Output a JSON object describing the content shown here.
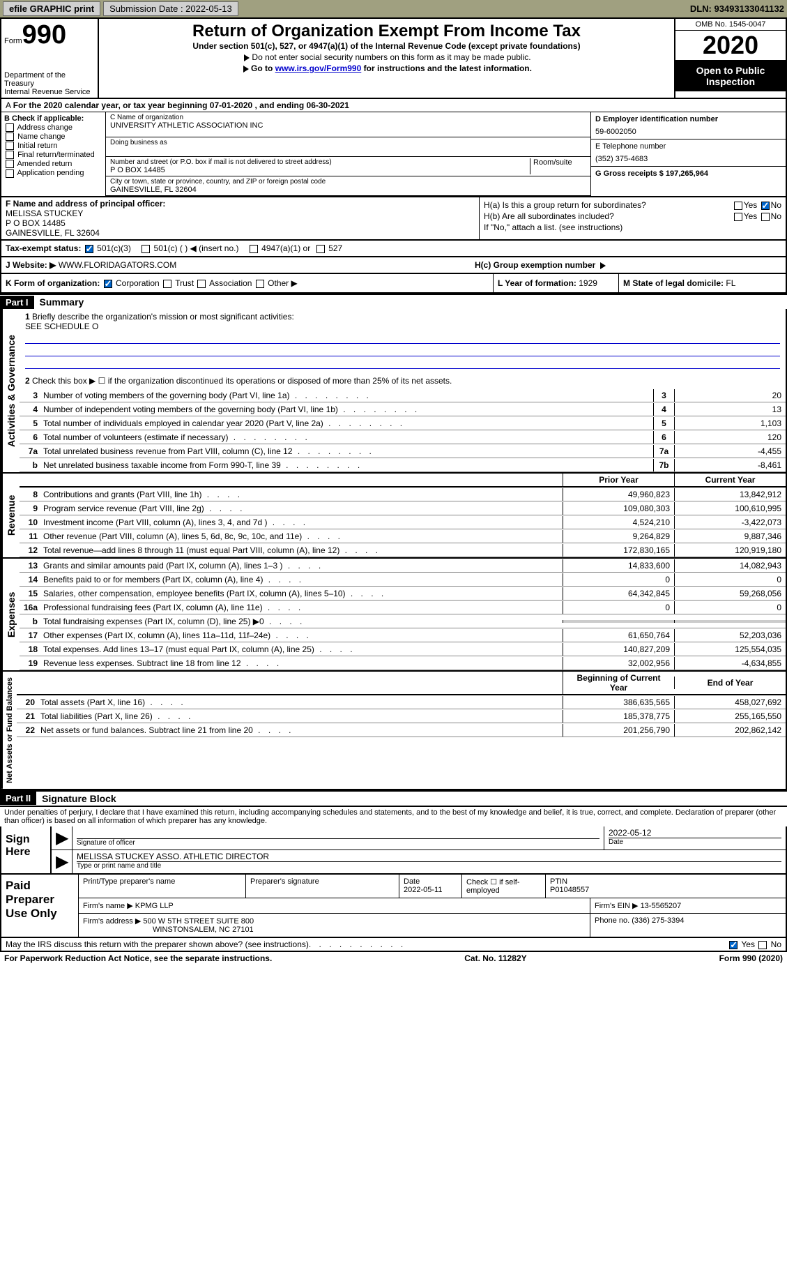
{
  "topbar": {
    "efile": "efile GRAPHIC print",
    "submission_label": "Submission Date : 2022-05-13",
    "dln": "DLN: 93493133041132"
  },
  "header": {
    "form_label": "Form",
    "form_number": "990",
    "dept": "Department of the Treasury\nInternal Revenue Service",
    "title": "Return of Organization Exempt From Income Tax",
    "subtitle": "Under section 501(c), 527, or 4947(a)(1) of the Internal Revenue Code (except private foundations)",
    "note1": "Do not enter social security numbers on this form as it may be made public.",
    "note2_prefix": "Go to ",
    "note2_link": "www.irs.gov/Form990",
    "note2_suffix": " for instructions and the latest information.",
    "omb": "OMB No. 1545-0047",
    "year": "2020",
    "inspect": "Open to Public Inspection"
  },
  "line_a": "For the 2020 calendar year, or tax year beginning 07-01-2020   , and ending 06-30-2021",
  "col_b": {
    "header": "B Check if applicable:",
    "items": [
      "Address change",
      "Name change",
      "Initial return",
      "Final return/terminated",
      "Amended return",
      "Application pending"
    ]
  },
  "col_c": {
    "name_label": "C Name of organization",
    "name": "UNIVERSITY ATHLETIC ASSOCIATION INC",
    "dba_label": "Doing business as",
    "street_label": "Number and street (or P.O. box if mail is not delivered to street address)",
    "street": "P O BOX 14485",
    "room_label": "Room/suite",
    "city_label": "City or town, state or province, country, and ZIP or foreign postal code",
    "city": "GAINESVILLE, FL  32604"
  },
  "col_d": {
    "ein_label": "D Employer identification number",
    "ein": "59-6002050",
    "phone_label": "E Telephone number",
    "phone": "(352) 375-4683",
    "gross_label": "G Gross receipts $ 197,265,964"
  },
  "section_f": {
    "label": "F  Name and address of principal officer:",
    "name": "MELISSA STUCKEY",
    "addr1": "P O BOX 14485",
    "addr2": "GAINESVILLE, FL  32604"
  },
  "section_h": {
    "ha_label": "H(a)  Is this a group return for subordinates?",
    "ha_yes": "Yes",
    "ha_no": "No",
    "hb_label": "H(b)  Are all subordinates included?",
    "hb_yes": "Yes",
    "hb_no": "No",
    "hb_note": "If \"No,\" attach a list. (see instructions)",
    "hc_label": "H(c)  Group exemption number"
  },
  "tax_status": {
    "label": "Tax-exempt status:",
    "opt1": "501(c)(3)",
    "opt2": "501(c) (   ) ◀ (insert no.)",
    "opt3": "4947(a)(1) or",
    "opt4": "527"
  },
  "website": {
    "label": "J   Website: ▶",
    "value": "WWW.FLORIDAGATORS.COM"
  },
  "k_row": {
    "k_label": "K Form of organization:",
    "k_corp": "Corporation",
    "k_trust": "Trust",
    "k_assoc": "Association",
    "k_other": "Other ▶",
    "l_label": "L Year of formation: ",
    "l_val": "1929",
    "m_label": "M State of legal domicile: ",
    "m_val": "FL"
  },
  "part1": {
    "label": "Part I",
    "title": "Summary"
  },
  "mission": {
    "q1": "Briefly describe the organization's mission or most significant activities:",
    "answer": "SEE SCHEDULE O",
    "q2": "Check this box ▶ ☐  if the organization discontinued its operations or disposed of more than 25% of its net assets."
  },
  "gov_rows": [
    {
      "n": "3",
      "d": "Number of voting members of the governing body (Part VI, line 1a)",
      "box": "3",
      "v": "20"
    },
    {
      "n": "4",
      "d": "Number of independent voting members of the governing body (Part VI, line 1b)",
      "box": "4",
      "v": "13"
    },
    {
      "n": "5",
      "d": "Total number of individuals employed in calendar year 2020 (Part V, line 2a)",
      "box": "5",
      "v": "1,103"
    },
    {
      "n": "6",
      "d": "Total number of volunteers (estimate if necessary)",
      "box": "6",
      "v": "120"
    },
    {
      "n": "7a",
      "d": "Total unrelated business revenue from Part VIII, column (C), line 12",
      "box": "7a",
      "v": "-4,455"
    },
    {
      "n": "b",
      "d": "Net unrelated business taxable income from Form 990-T, line 39",
      "box": "7b",
      "v": "-8,461"
    }
  ],
  "py_cy_header": {
    "py": "Prior Year",
    "cy": "Current Year"
  },
  "revenue_rows": [
    {
      "n": "8",
      "d": "Contributions and grants (Part VIII, line 1h)",
      "py": "49,960,823",
      "cy": "13,842,912"
    },
    {
      "n": "9",
      "d": "Program service revenue (Part VIII, line 2g)",
      "py": "109,080,303",
      "cy": "100,610,995"
    },
    {
      "n": "10",
      "d": "Investment income (Part VIII, column (A), lines 3, 4, and 7d )",
      "py": "4,524,210",
      "cy": "-3,422,073"
    },
    {
      "n": "11",
      "d": "Other revenue (Part VIII, column (A), lines 5, 6d, 8c, 9c, 10c, and 11e)",
      "py": "9,264,829",
      "cy": "9,887,346"
    },
    {
      "n": "12",
      "d": "Total revenue—add lines 8 through 11 (must equal Part VIII, column (A), line 12)",
      "py": "172,830,165",
      "cy": "120,919,180"
    }
  ],
  "expense_rows": [
    {
      "n": "13",
      "d": "Grants and similar amounts paid (Part IX, column (A), lines 1–3 )",
      "py": "14,833,600",
      "cy": "14,082,943"
    },
    {
      "n": "14",
      "d": "Benefits paid to or for members (Part IX, column (A), line 4)",
      "py": "0",
      "cy": "0"
    },
    {
      "n": "15",
      "d": "Salaries, other compensation, employee benefits (Part IX, column (A), lines 5–10)",
      "py": "64,342,845",
      "cy": "59,268,056"
    },
    {
      "n": "16a",
      "d": "Professional fundraising fees (Part IX, column (A), line 11e)",
      "py": "0",
      "cy": "0"
    },
    {
      "n": "b",
      "d": "Total fundraising expenses (Part IX, column (D), line 25) ▶0",
      "py": "",
      "cy": "",
      "shade": true
    },
    {
      "n": "17",
      "d": "Other expenses (Part IX, column (A), lines 11a–11d, 11f–24e)",
      "py": "61,650,764",
      "cy": "52,203,036"
    },
    {
      "n": "18",
      "d": "Total expenses. Add lines 13–17 (must equal Part IX, column (A), line 25)",
      "py": "140,827,209",
      "cy": "125,554,035"
    },
    {
      "n": "19",
      "d": "Revenue less expenses. Subtract line 18 from line 12",
      "py": "32,002,956",
      "cy": "-4,634,855"
    }
  ],
  "na_header": {
    "py": "Beginning of Current Year",
    "cy": "End of Year"
  },
  "na_rows": [
    {
      "n": "20",
      "d": "Total assets (Part X, line 16)",
      "py": "386,635,565",
      "cy": "458,027,692"
    },
    {
      "n": "21",
      "d": "Total liabilities (Part X, line 26)",
      "py": "185,378,775",
      "cy": "255,165,550"
    },
    {
      "n": "22",
      "d": "Net assets or fund balances. Subtract line 21 from line 20",
      "py": "201,256,790",
      "cy": "202,862,142"
    }
  ],
  "rotated_labels": {
    "gov": "Activities & Governance",
    "rev": "Revenue",
    "exp": "Expenses",
    "na": "Net Assets or Fund Balances"
  },
  "part2": {
    "label": "Part II",
    "title": "Signature Block"
  },
  "penalty": "Under penalties of perjury, I declare that I have examined this return, including accompanying schedules and statements, and to the best of my knowledge and belief, it is true, correct, and complete. Declaration of preparer (other than officer) is based on all information of which preparer has any knowledge.",
  "sign": {
    "label": "Sign Here",
    "sig_label": "Signature of officer",
    "date": "2022-05-12",
    "date_label": "Date",
    "name": "MELISSA STUCKEY  ASSO. ATHLETIC DIRECTOR",
    "name_label": "Type or print name and title"
  },
  "paid": {
    "label": "Paid Preparer Use Only",
    "h1": "Print/Type preparer's name",
    "h2": "Preparer's signature",
    "h3": "Date",
    "date": "2022-05-11",
    "h4": "Check ☐ if self-employed",
    "h5": "PTIN",
    "ptin": "P01048557",
    "firm_label": "Firm's name    ▶",
    "firm": "KPMG LLP",
    "ein_label": "Firm's EIN ▶",
    "ein": "13-5565207",
    "addr_label": "Firm's address ▶",
    "addr1": "500 W 5TH STREET SUITE 800",
    "addr2": "WINSTONSALEM, NC  27101",
    "phone_label": "Phone no.",
    "phone": "(336) 275-3394"
  },
  "irs_discuss": {
    "q": "May the IRS discuss this return with the preparer shown above? (see instructions)",
    "yes": "Yes",
    "no": "No"
  },
  "footer": {
    "left": "For Paperwork Reduction Act Notice, see the separate instructions.",
    "center": "Cat. No. 11282Y",
    "right": "Form 990 (2020)"
  },
  "colors": {
    "topbar_bg": "#a0a080",
    "link": "#0000cc",
    "black": "#000000",
    "shade": "#cccccc"
  }
}
